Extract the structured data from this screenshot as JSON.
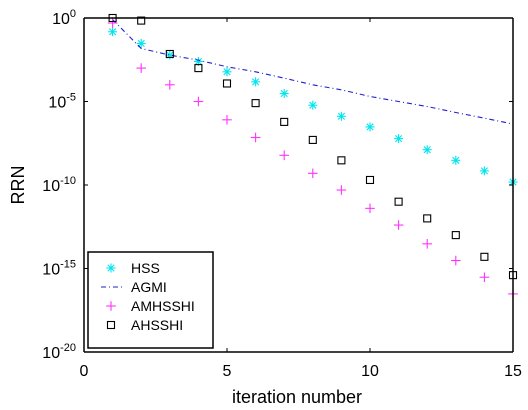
{
  "chart_data": {
    "type": "scatter",
    "title": "",
    "xlabel": "iteration number",
    "ylabel": "RRN",
    "xlim": [
      0,
      15
    ],
    "ylim": [
      1e-20,
      1
    ],
    "yscale": "log",
    "grid": false,
    "legend_position": "bottom-left",
    "x_ticks": [
      0,
      5,
      10,
      15
    ],
    "x_tick_labels": [
      "0",
      "5",
      "10",
      "15"
    ],
    "y_tick_exponents": [
      0,
      -5,
      -10,
      -15,
      -20
    ],
    "y_tick_base": "10",
    "y_tick_exponent_labels": [
      "0",
      "-5",
      "-10",
      "-15",
      "-20"
    ],
    "series": [
      {
        "name": "HSS",
        "marker": "asterisk",
        "color": "#00e5ee",
        "x": [
          1,
          2,
          3,
          4,
          5,
          6,
          7,
          8,
          9,
          10,
          11,
          12,
          13,
          14,
          15
        ],
        "y": [
          0.15,
          0.03,
          0.006,
          0.0025,
          0.0006,
          0.00015,
          3e-05,
          6e-06,
          1.3e-06,
          3e-07,
          6e-08,
          1.3e-08,
          3e-09,
          7e-10,
          1.5e-10
        ]
      },
      {
        "name": "AGMI",
        "marker": "dashdot-line",
        "color": "#1f1fd1",
        "x": [
          1,
          2,
          3,
          4,
          5,
          6,
          7,
          8,
          9,
          10,
          11,
          12,
          13,
          14,
          15
        ],
        "y": [
          0.8,
          0.015,
          0.006,
          0.003,
          0.0012,
          0.0006,
          0.00025,
          0.0001,
          5e-05,
          2e-05,
          1e-05,
          5e-06,
          2.2e-06,
          1e-06,
          4.5e-07
        ]
      },
      {
        "name": "AMHSSHI",
        "marker": "plus",
        "color": "#ff33ff",
        "x": [
          1,
          2,
          3,
          4,
          5,
          6,
          7,
          8,
          9,
          10,
          11,
          12,
          13,
          14,
          15
        ],
        "y": [
          0.5,
          0.001,
          0.0001,
          1e-05,
          8e-07,
          7e-08,
          6e-09,
          5e-10,
          5e-11,
          4e-12,
          4e-13,
          3e-14,
          3e-15,
          3e-16,
          3e-17
        ]
      },
      {
        "name": "AHSSHI",
        "marker": "square",
        "color": "#000000",
        "x": [
          1,
          2,
          3,
          4,
          5,
          6,
          7,
          8,
          9,
          10,
          11,
          12,
          13,
          14,
          15
        ],
        "y": [
          1,
          0.7,
          0.007,
          0.001,
          0.00012,
          8e-06,
          6e-07,
          5e-08,
          3e-09,
          2e-10,
          1e-11,
          1e-12,
          1e-13,
          5e-15,
          4e-16
        ]
      }
    ]
  }
}
